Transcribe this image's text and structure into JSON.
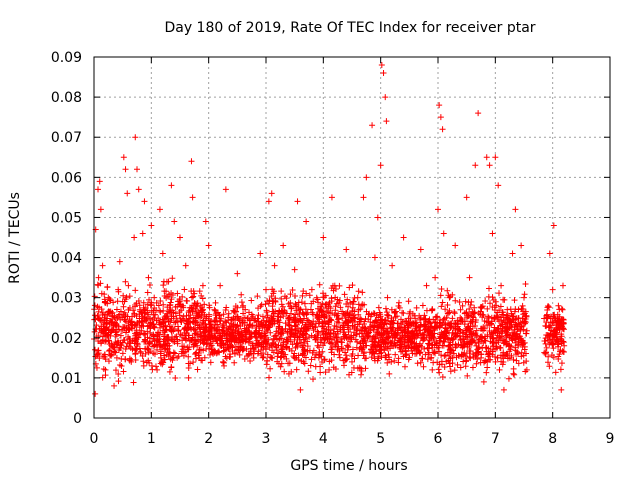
{
  "chart_data": {
    "type": "scatter",
    "title": "Day 180 of 2019, Rate Of TEC Index for receiver ptar",
    "xlabel": "GPS time / hours",
    "ylabel": "ROTI / TECUs",
    "xlim": [
      0,
      9
    ],
    "ylim": [
      0,
      0.09
    ],
    "x_ticks": [
      "0",
      "1",
      "2",
      "3",
      "4",
      "5",
      "6",
      "7",
      "8",
      "9"
    ],
    "y_ticks": [
      "0",
      "0.01",
      "0.02",
      "0.03",
      "0.04",
      "0.05",
      "0.06",
      "0.07",
      "0.08",
      "0.09"
    ],
    "grid": true,
    "marker": "+",
    "color": "#ff0000",
    "series": [
      {
        "name": "ptar",
        "points": [
          [
            0.02,
            0.006
          ],
          [
            0.03,
            0.047
          ],
          [
            0.05,
            0.016
          ],
          [
            0.07,
            0.057
          ],
          [
            0.08,
            0.035
          ],
          [
            0.1,
            0.059
          ],
          [
            0.12,
            0.052
          ],
          [
            0.15,
            0.038
          ],
          [
            0.18,
            0.025
          ],
          [
            0.2,
            0.012
          ],
          [
            0.25,
            0.03
          ],
          [
            0.3,
            0.018
          ],
          [
            0.35,
            0.008
          ],
          [
            0.4,
            0.022
          ],
          [
            0.45,
            0.039
          ],
          [
            0.5,
            0.029
          ],
          [
            0.52,
            0.065
          ],
          [
            0.55,
            0.062
          ],
          [
            0.58,
            0.056
          ],
          [
            0.6,
            0.033
          ],
          [
            0.65,
            0.014
          ],
          [
            0.7,
            0.045
          ],
          [
            0.72,
            0.07
          ],
          [
            0.75,
            0.062
          ],
          [
            0.78,
            0.057
          ],
          [
            0.8,
            0.027
          ],
          [
            0.85,
            0.046
          ],
          [
            0.88,
            0.054
          ],
          [
            0.9,
            0.016
          ],
          [
            0.95,
            0.035
          ],
          [
            1.0,
            0.048
          ],
          [
            1.05,
            0.03
          ],
          [
            1.1,
            0.012
          ],
          [
            1.15,
            0.052
          ],
          [
            1.2,
            0.041
          ],
          [
            1.25,
            0.022
          ],
          [
            1.3,
            0.034
          ],
          [
            1.35,
            0.058
          ],
          [
            1.4,
            0.049
          ],
          [
            1.45,
            0.015
          ],
          [
            1.5,
            0.045
          ],
          [
            1.55,
            0.028
          ],
          [
            1.6,
            0.038
          ],
          [
            1.65,
            0.01
          ],
          [
            1.7,
            0.064
          ],
          [
            1.72,
            0.055
          ],
          [
            1.75,
            0.031
          ],
          [
            1.8,
            0.018
          ],
          [
            1.85,
            0.025
          ],
          [
            1.9,
            0.033
          ],
          [
            1.95,
            0.049
          ],
          [
            2.0,
            0.043
          ],
          [
            2.05,
            0.017
          ],
          [
            2.1,
            0.027
          ],
          [
            2.15,
            0.022
          ],
          [
            2.2,
            0.033
          ],
          [
            2.25,
            0.014
          ],
          [
            2.3,
            0.057
          ],
          [
            2.35,
            0.026
          ],
          [
            2.4,
            0.019
          ],
          [
            2.5,
            0.036
          ],
          [
            2.6,
            0.028
          ],
          [
            2.7,
            0.016
          ],
          [
            2.8,
            0.021
          ],
          [
            2.9,
            0.041
          ],
          [
            3.0,
            0.032
          ],
          [
            3.05,
            0.054
          ],
          [
            3.1,
            0.056
          ],
          [
            3.15,
            0.038
          ],
          [
            3.2,
            0.024
          ],
          [
            3.3,
            0.043
          ],
          [
            3.4,
            0.011
          ],
          [
            3.5,
            0.037
          ],
          [
            3.55,
            0.054
          ],
          [
            3.6,
            0.007
          ],
          [
            3.65,
            0.026
          ],
          [
            3.7,
            0.049
          ],
          [
            3.8,
            0.032
          ],
          [
            3.9,
            0.018
          ],
          [
            4.0,
            0.045
          ],
          [
            4.1,
            0.012
          ],
          [
            4.15,
            0.055
          ],
          [
            4.2,
            0.033
          ],
          [
            4.3,
            0.022
          ],
          [
            4.4,
            0.042
          ],
          [
            4.5,
            0.014
          ],
          [
            4.6,
            0.03
          ],
          [
            4.7,
            0.055
          ],
          [
            4.75,
            0.06
          ],
          [
            4.8,
            0.026
          ],
          [
            4.85,
            0.073
          ],
          [
            4.9,
            0.04
          ],
          [
            4.95,
            0.05
          ],
          [
            5.0,
            0.063
          ],
          [
            5.02,
            0.088
          ],
          [
            5.05,
            0.086
          ],
          [
            5.08,
            0.08
          ],
          [
            5.1,
            0.074
          ],
          [
            5.12,
            0.03
          ],
          [
            5.15,
            0.011
          ],
          [
            5.2,
            0.038
          ],
          [
            5.3,
            0.021
          ],
          [
            5.4,
            0.045
          ],
          [
            5.5,
            0.026
          ],
          [
            5.6,
            0.016
          ],
          [
            5.7,
            0.042
          ],
          [
            5.8,
            0.033
          ],
          [
            5.9,
            0.012
          ],
          [
            5.95,
            0.035
          ],
          [
            6.0,
            0.052
          ],
          [
            6.02,
            0.078
          ],
          [
            6.05,
            0.075
          ],
          [
            6.08,
            0.072
          ],
          [
            6.1,
            0.046
          ],
          [
            6.15,
            0.025
          ],
          [
            6.2,
            0.03
          ],
          [
            6.3,
            0.043
          ],
          [
            6.4,
            0.018
          ],
          [
            6.5,
            0.055
          ],
          [
            6.55,
            0.035
          ],
          [
            6.6,
            0.024
          ],
          [
            6.65,
            0.063
          ],
          [
            6.7,
            0.076
          ],
          [
            6.75,
            0.015
          ],
          [
            6.8,
            0.009
          ],
          [
            6.85,
            0.065
          ],
          [
            6.9,
            0.063
          ],
          [
            6.95,
            0.046
          ],
          [
            7.0,
            0.065
          ],
          [
            7.05,
            0.058
          ],
          [
            7.1,
            0.033
          ],
          [
            7.15,
            0.007
          ],
          [
            7.2,
            0.025
          ],
          [
            7.3,
            0.041
          ],
          [
            7.35,
            0.052
          ],
          [
            7.4,
            0.018
          ],
          [
            7.45,
            0.043
          ],
          [
            7.5,
            0.03
          ],
          [
            7.55,
            0.012
          ],
          [
            7.9,
            0.025
          ],
          [
            7.95,
            0.041
          ],
          [
            8.0,
            0.032
          ],
          [
            8.02,
            0.048
          ],
          [
            8.05,
            0.021
          ],
          [
            8.1,
            0.028
          ],
          [
            8.15,
            0.007
          ],
          [
            8.18,
            0.033
          ],
          [
            8.2,
            0.018
          ]
        ]
      }
    ],
    "dense_regions": [
      {
        "x": [
          0.0,
          1.9
        ],
        "y_range": [
          0.008,
          0.036
        ]
      },
      {
        "x": [
          1.9,
          3.0
        ],
        "y_range": [
          0.012,
          0.03
        ]
      },
      {
        "x": [
          3.0,
          4.7
        ],
        "y_range": [
          0.008,
          0.036
        ]
      },
      {
        "x": [
          4.7,
          6.0
        ],
        "y_range": [
          0.011,
          0.03
        ]
      },
      {
        "x": [
          6.0,
          7.55
        ],
        "y_range": [
          0.008,
          0.034
        ]
      },
      {
        "x": [
          7.85,
          8.2
        ],
        "y_range": [
          0.01,
          0.032
        ]
      }
    ]
  }
}
